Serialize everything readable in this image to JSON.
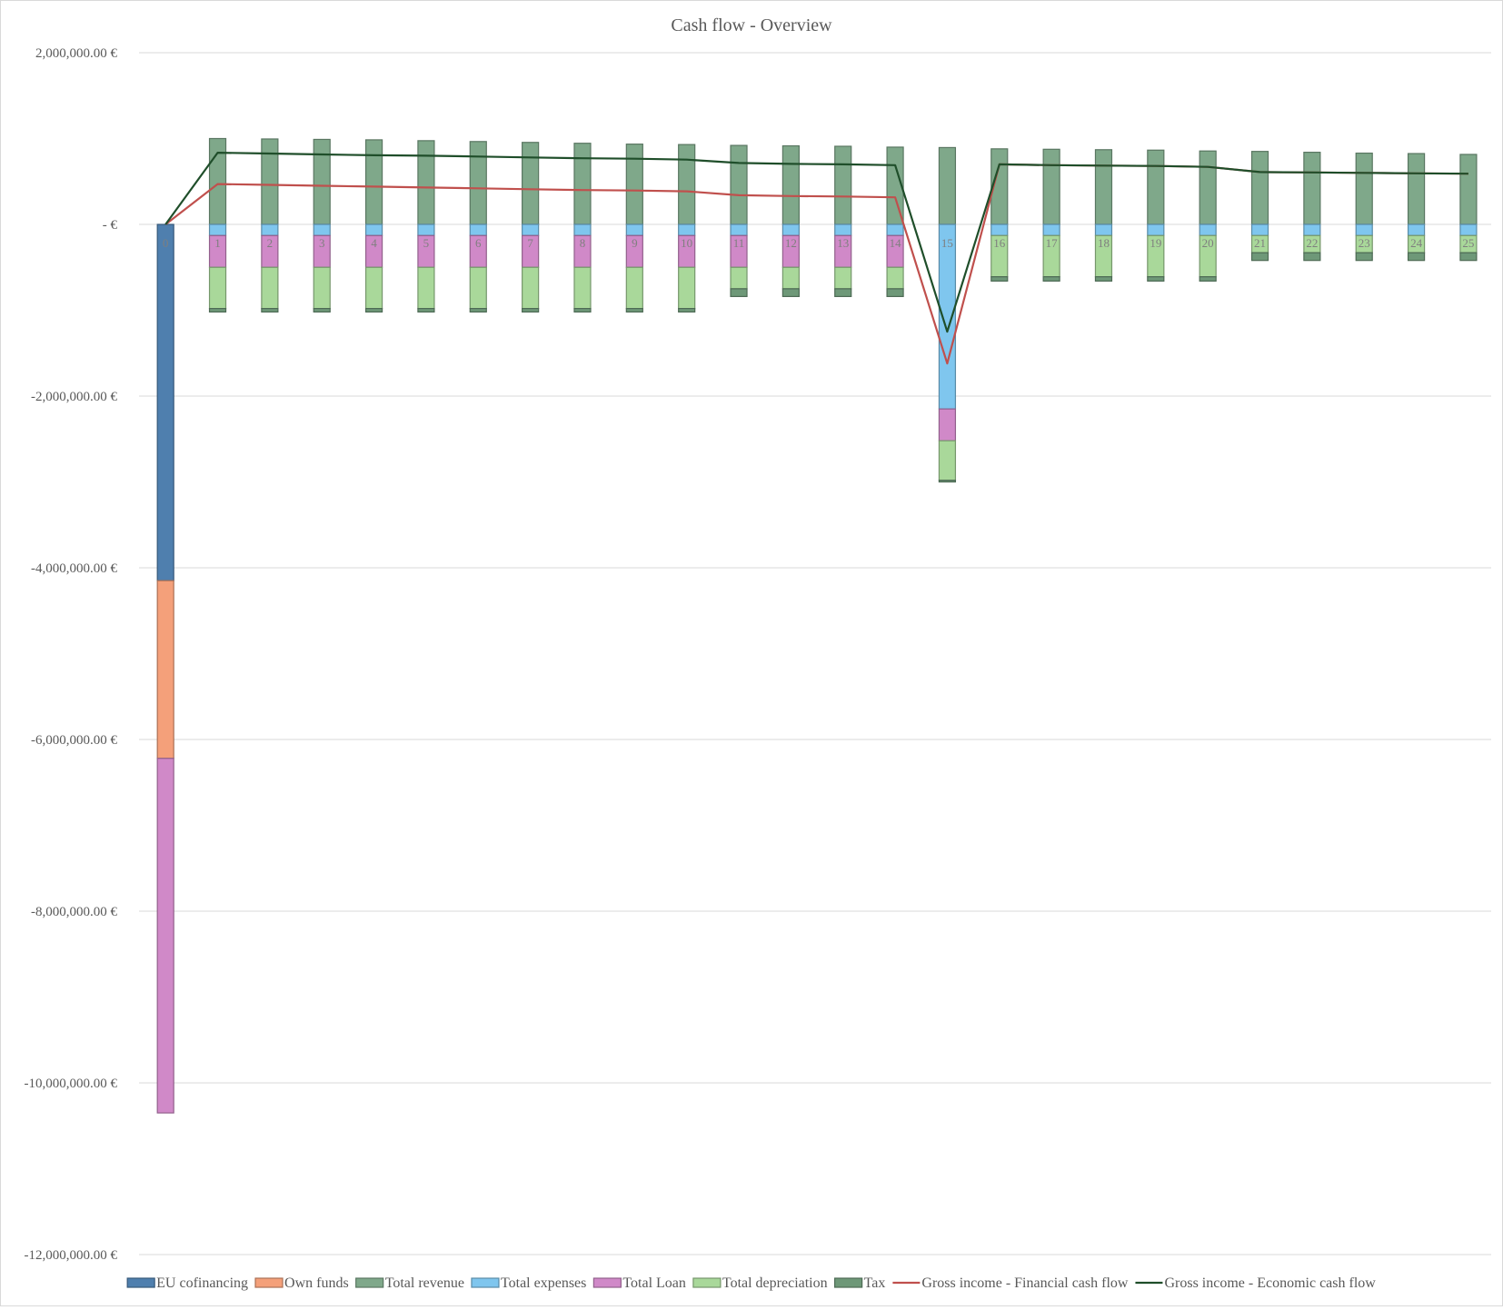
{
  "chart_data": {
    "type": "bar",
    "title": "Cash flow - Overview",
    "xlabel": "",
    "ylabel": "",
    "ylim": [
      -12000000,
      2000000
    ],
    "y_ticks": [
      {
        "value": 2000000,
        "label": "2,000,000.00 €"
      },
      {
        "value": 0,
        "label": "-  €"
      },
      {
        "value": -2000000,
        "label": "-2,000,000.00 €"
      },
      {
        "value": -4000000,
        "label": "-4,000,000.00 €"
      },
      {
        "value": -6000000,
        "label": "-6,000,000.00 €"
      },
      {
        "value": -8000000,
        "label": "-8,000,000.00 €"
      },
      {
        "value": -10000000,
        "label": "-10,000,000.00 €"
      },
      {
        "value": -12000000,
        "label": "-12,000,000.00 €"
      }
    ],
    "categories": [
      "0",
      "1",
      "2",
      "3",
      "4",
      "5",
      "6",
      "7",
      "8",
      "9",
      "10",
      "11",
      "12",
      "13",
      "14",
      "15",
      "16",
      "17",
      "18",
      "19",
      "20",
      "21",
      "22",
      "23",
      "24",
      "25"
    ],
    "grid": true,
    "legend_position": "bottom",
    "series": [
      {
        "name": "EU cofinancing",
        "kind": "bar",
        "color": "#4f7fae",
        "values": [
          -4150000,
          0,
          0,
          0,
          0,
          0,
          0,
          0,
          0,
          0,
          0,
          0,
          0,
          0,
          0,
          0,
          0,
          0,
          0,
          0,
          0,
          0,
          0,
          0,
          0,
          0
        ]
      },
      {
        "name": "Own funds",
        "kind": "bar",
        "color": "#f4a07a",
        "values": [
          -2070000,
          0,
          0,
          0,
          0,
          0,
          0,
          0,
          0,
          0,
          0,
          0,
          0,
          0,
          0,
          0,
          0,
          0,
          0,
          0,
          0,
          0,
          0,
          0,
          0,
          0
        ]
      },
      {
        "name": "Total revenue",
        "kind": "bar",
        "color": "#7fa88a",
        "values": [
          0,
          1000000,
          995000,
          990000,
          985000,
          975000,
          965000,
          955000,
          945000,
          935000,
          930000,
          920000,
          915000,
          910000,
          900000,
          895000,
          880000,
          875000,
          870000,
          865000,
          855000,
          850000,
          840000,
          830000,
          825000,
          815000
        ]
      },
      {
        "name": "Total expenses",
        "kind": "bar",
        "color": "#7fc6ee",
        "values": [
          0,
          -130000,
          -130000,
          -130000,
          -130000,
          -130000,
          -130000,
          -130000,
          -130000,
          -130000,
          -130000,
          -130000,
          -130000,
          -130000,
          -130000,
          -2150000,
          -130000,
          -130000,
          -130000,
          -130000,
          -130000,
          -130000,
          -130000,
          -130000,
          -130000,
          -130000
        ]
      },
      {
        "name": "Total Loan",
        "kind": "bar",
        "color": "#d089c8",
        "values": [
          -4130000,
          -370000,
          -370000,
          -370000,
          -370000,
          -370000,
          -370000,
          -370000,
          -370000,
          -370000,
          -370000,
          -370000,
          -370000,
          -370000,
          -370000,
          -370000,
          0,
          0,
          0,
          0,
          0,
          0,
          0,
          0,
          0,
          0
        ]
      },
      {
        "name": "Total depreciation",
        "kind": "bar",
        "color": "#a9d89a",
        "values": [
          0,
          -480000,
          -480000,
          -480000,
          -480000,
          -480000,
          -480000,
          -480000,
          -480000,
          -480000,
          -480000,
          -250000,
          -250000,
          -250000,
          -250000,
          -460000,
          -480000,
          -480000,
          -480000,
          -480000,
          -480000,
          -200000,
          -200000,
          -200000,
          -200000,
          -200000
        ]
      },
      {
        "name": "Tax",
        "kind": "bar",
        "color": "#6e9878",
        "values": [
          0,
          -40000,
          -40000,
          -40000,
          -40000,
          -40000,
          -40000,
          -40000,
          -40000,
          -40000,
          -40000,
          -90000,
          -90000,
          -90000,
          -90000,
          -20000,
          -50000,
          -50000,
          -50000,
          -50000,
          -50000,
          -90000,
          -90000,
          -90000,
          -90000,
          -90000
        ]
      },
      {
        "name": "Gross income - Financial cash flow",
        "kind": "line",
        "color": "#c0504d",
        "values": [
          0,
          470000,
          460000,
          450000,
          440000,
          430000,
          420000,
          410000,
          400000,
          395000,
          385000,
          340000,
          330000,
          325000,
          315000,
          -1620000,
          700000,
          690000,
          685000,
          680000,
          670000,
          610000,
          605000,
          600000,
          595000,
          590000
        ]
      },
      {
        "name": "Gross income - Economic cash flow",
        "kind": "line",
        "color": "#1f4e2a",
        "values": [
          0,
          835000,
          825000,
          815000,
          805000,
          800000,
          790000,
          780000,
          770000,
          765000,
          755000,
          715000,
          705000,
          700000,
          690000,
          -1250000,
          700000,
          690000,
          685000,
          680000,
          670000,
          610000,
          605000,
          600000,
          595000,
          590000
        ]
      }
    ]
  }
}
